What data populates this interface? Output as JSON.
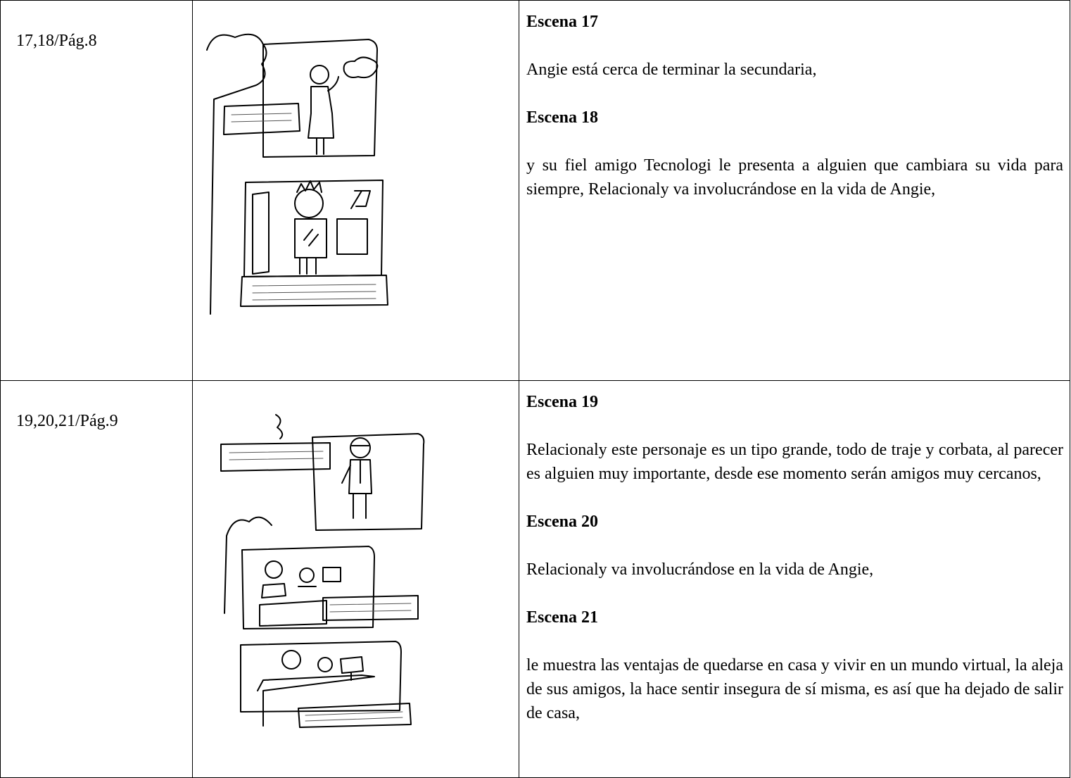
{
  "rows": [
    {
      "ref": "17,18/Pág.8",
      "scenes": [
        {
          "heading": "Escena 17",
          "text": "Angie está cerca de terminar la secundaria,"
        },
        {
          "heading": "Escena 18",
          "text": "y su fiel amigo Tecnologi le presenta a alguien que cambiara su vida para siempre, Relacionaly va involucrándose en la vida de Angie,"
        }
      ]
    },
    {
      "ref": "19,20,21/Pág.9",
      "scenes": [
        {
          "heading": "Escena 19",
          "text": "Relacionaly este personaje es un tipo grande, todo de traje y corbata, al parecer es alguien muy importante, desde ese momento serán amigos muy cercanos,"
        },
        {
          "heading": "Escena 20",
          "text": "Relacionaly va involucrándose en la vida de Angie,"
        },
        {
          "heading": "Escena 21",
          "text": "le muestra las ventajas de quedarse en casa y vivir en un mundo virtual, la aleja de sus amigos, la hace sentir insegura de sí misma, es así que ha dejado de salir de casa,"
        }
      ]
    }
  ]
}
